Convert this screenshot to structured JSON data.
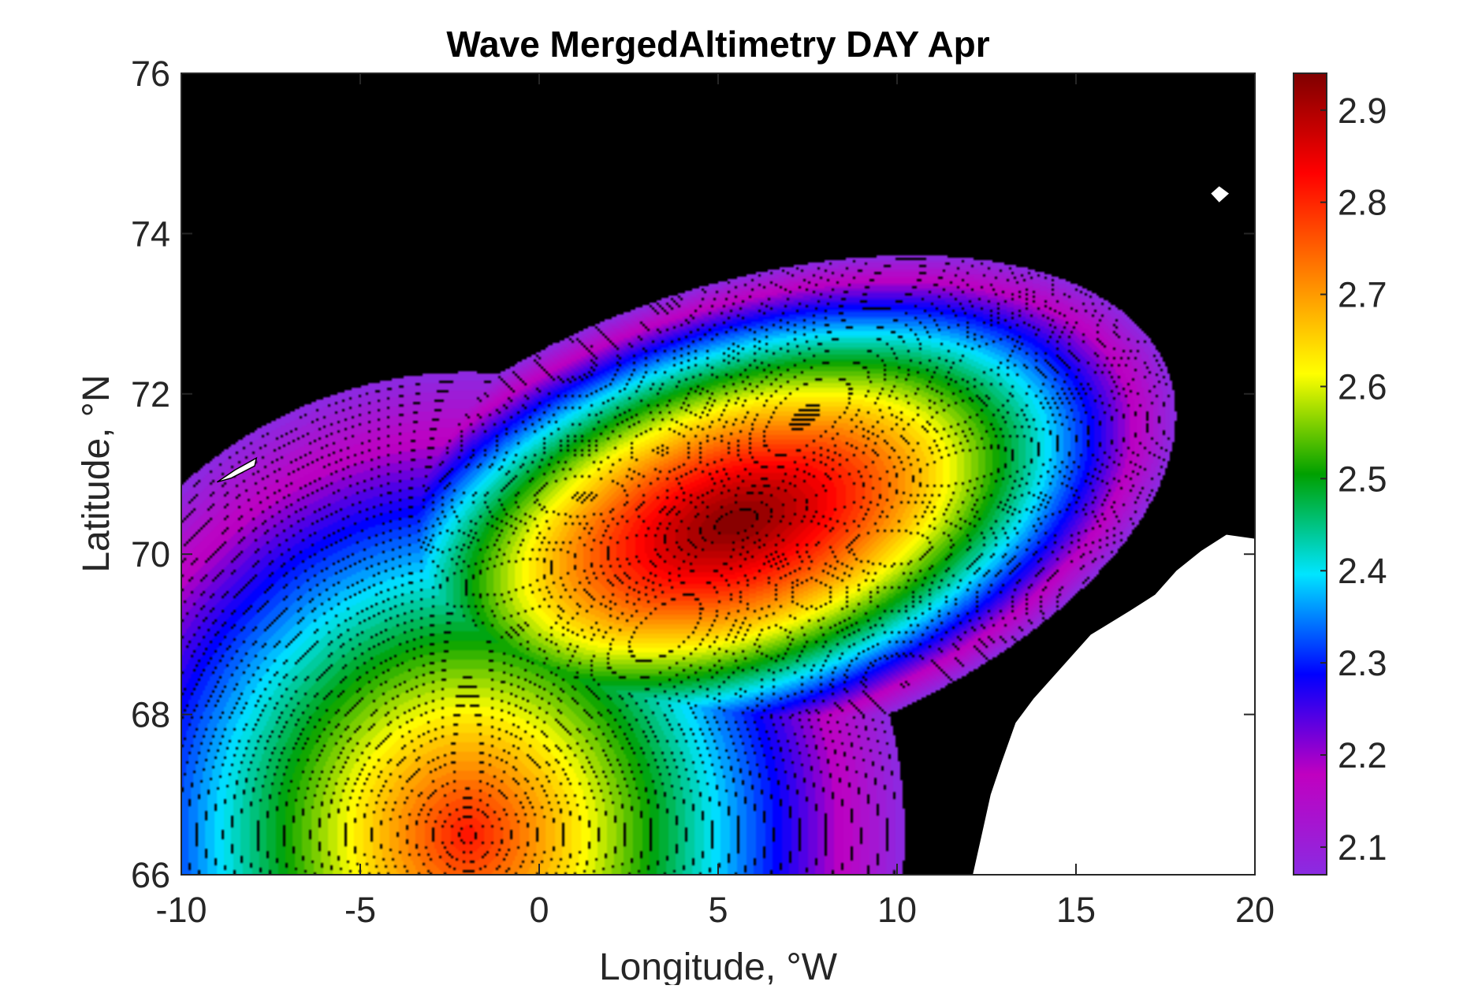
{
  "chart_data": {
    "type": "heatmap",
    "subtype": "filled-contour-map",
    "title": "Wave MergedAltimetry DAY Apr",
    "xlabel": "Longitude, °W",
    "ylabel": "Latitude, °N",
    "xlim": [
      -10,
      20
    ],
    "ylim": [
      66,
      76
    ],
    "x_ticks": [
      "-10",
      "-5",
      "0",
      "5",
      "10",
      "15",
      "20"
    ],
    "y_ticks": [
      "66",
      "68",
      "70",
      "72",
      "74",
      "76"
    ],
    "colorbar": {
      "range": [
        2.07,
        2.94
      ],
      "ticks": [
        "2.1",
        "2.2",
        "2.3",
        "2.4",
        "2.5",
        "2.6",
        "2.7",
        "2.8",
        "2.9"
      ],
      "colormap": [
        "#8a2be2",
        "#c000c0",
        "#0000ff",
        "#00e5ff",
        "#00a000",
        "#ffff00",
        "#ff8000",
        "#ff0000",
        "#800000"
      ]
    },
    "field": {
      "peak": {
        "lon": 5.5,
        "lat": 70.4,
        "value": 2.94
      },
      "secondary_high": {
        "lon": -2,
        "lat": 66.5,
        "value": 2.82
      },
      "min_value": 2.07,
      "max_value": 2.94
    },
    "land_color": "#ffffff"
  }
}
